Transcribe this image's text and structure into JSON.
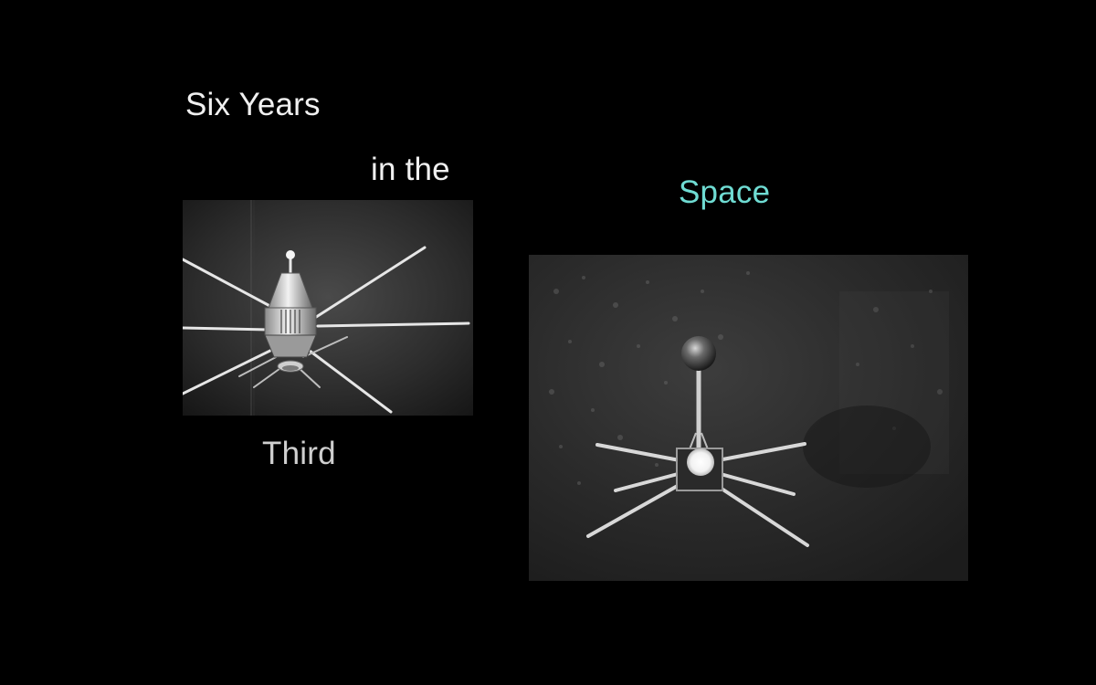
{
  "captions": {
    "line1": "Six Years",
    "line2": "in the",
    "line3": "Third",
    "line4": "Space"
  },
  "colors": {
    "background": "#000000",
    "caption_primary": "#f0f0f0",
    "caption_muted": "#cfcfcf",
    "caption_accent": "#6fdcd3"
  },
  "images": {
    "left": {
      "subject": "satellite-with-whip-antennas",
      "style": "black-and-white archival film still"
    },
    "right": {
      "subject": "satellite-model-with-sphere-on-mast",
      "style": "black-and-white archival film still"
    }
  }
}
